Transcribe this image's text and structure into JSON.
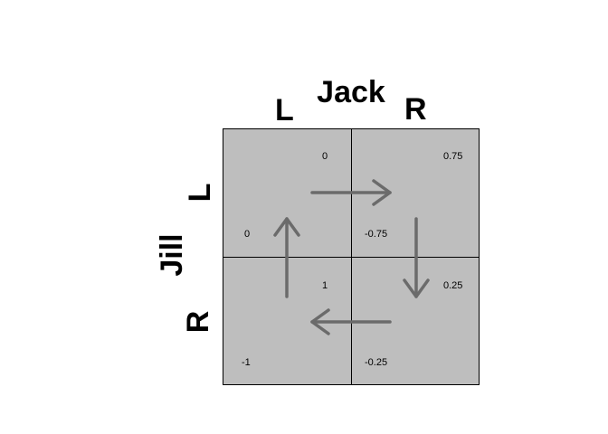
{
  "diagram": {
    "title": "Jack",
    "column_player": "Jack",
    "row_player": "Jill",
    "column_strategies": [
      "L",
      "R"
    ],
    "row_strategies": [
      "L",
      "R"
    ],
    "cells": {
      "LL": {
        "jack": "0",
        "jill": "0"
      },
      "LR": {
        "jack": "0.75",
        "jill": "-0.75"
      },
      "RL": {
        "jack": "1",
        "jill": "-1"
      },
      "RR": {
        "jack": "0.25",
        "jill": "-0.25"
      }
    },
    "colors": {
      "cell_fill": "#bebebe",
      "arrow": "#6b6b6b",
      "text": "#000000"
    }
  }
}
